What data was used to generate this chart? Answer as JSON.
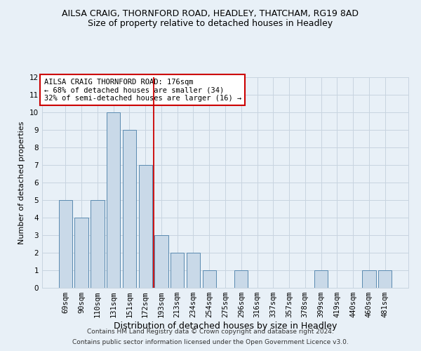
{
  "title": "AILSA CRAIG, THORNFORD ROAD, HEADLEY, THATCHAM, RG19 8AD",
  "subtitle": "Size of property relative to detached houses in Headley",
  "xlabel": "Distribution of detached houses by size in Headley",
  "ylabel": "Number of detached properties",
  "categories": [
    "69sqm",
    "90sqm",
    "110sqm",
    "131sqm",
    "151sqm",
    "172sqm",
    "193sqm",
    "213sqm",
    "234sqm",
    "254sqm",
    "275sqm",
    "296sqm",
    "316sqm",
    "337sqm",
    "357sqm",
    "378sqm",
    "399sqm",
    "419sqm",
    "440sqm",
    "460sqm",
    "481sqm"
  ],
  "values": [
    5,
    4,
    5,
    10,
    9,
    7,
    3,
    2,
    2,
    1,
    0,
    1,
    0,
    0,
    0,
    0,
    1,
    0,
    0,
    1,
    1
  ],
  "bar_color": "#c9d9e8",
  "bar_edge_color": "#5a8ab0",
  "grid_color": "#c8d4e0",
  "background_color": "#e8f0f7",
  "vline_x": 5.5,
  "vline_color": "#cc0000",
  "annotation_text": "AILSA CRAIG THORNFORD ROAD: 176sqm\n← 68% of detached houses are smaller (34)\n32% of semi-detached houses are larger (16) →",
  "annotation_box_color": "#ffffff",
  "annotation_box_edge": "#cc0000",
  "ylim": [
    0,
    12
  ],
  "yticks": [
    0,
    1,
    2,
    3,
    4,
    5,
    6,
    7,
    8,
    9,
    10,
    11,
    12
  ],
  "footer_line1": "Contains HM Land Registry data © Crown copyright and database right 2024.",
  "footer_line2": "Contains public sector information licensed under the Open Government Licence v3.0.",
  "title_fontsize": 9,
  "subtitle_fontsize": 9,
  "xlabel_fontsize": 9,
  "ylabel_fontsize": 8,
  "tick_fontsize": 7.5,
  "annotation_fontsize": 7.5,
  "footer_fontsize": 6.5
}
